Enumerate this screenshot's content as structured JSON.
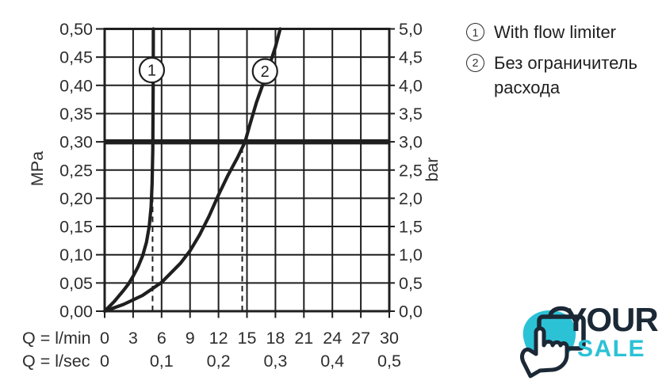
{
  "colors": {
    "ink": "#1f1f1f",
    "text": "#2e2e2e",
    "teal": "#2cc2d6",
    "navy": "#1b2836",
    "background": "#ffffff"
  },
  "legend": {
    "items": [
      {
        "num": "1",
        "text": "With flow limiter"
      },
      {
        "num": "2",
        "text": "Без ограничитель расхода",
        "text_line1": "Без ограничитель",
        "text_line2": "расхода"
      }
    ]
  },
  "logo": {
    "line1": "YOUR",
    "line2": "SALE"
  },
  "chart_data": {
    "type": "line",
    "grid": true,
    "legend_position": "right",
    "x_axis": {
      "row1_label": "Q = l/min",
      "row2_label": "Q = l/sec",
      "xlim_lmin": [
        0,
        30
      ],
      "ticks_lmin": [
        0,
        3,
        6,
        9,
        12,
        15,
        18,
        21,
        24,
        27,
        30
      ],
      "tick_labels_lmin": [
        "0",
        "3",
        "6",
        "9",
        "12",
        "15",
        "18",
        "21",
        "24",
        "27",
        "30"
      ],
      "ticks_lsec": [
        0,
        0.1,
        0.2,
        0.3,
        0.4,
        0.5
      ],
      "tick_labels_lsec": [
        "0",
        "0,1",
        "0,2",
        "0,3",
        "0,4",
        "0,5"
      ],
      "lsec_positions_lmin": [
        0,
        6,
        12,
        18,
        24,
        30
      ]
    },
    "y_axis_left": {
      "unit": "MPa",
      "lim": [
        0,
        0.5
      ],
      "ticks": [
        0.5,
        0.45,
        0.4,
        0.35,
        0.3,
        0.25,
        0.2,
        0.15,
        0.1,
        0.05,
        0.0
      ],
      "tick_labels": [
        "0,50",
        "0,45",
        "0,40",
        "0,35",
        "0,30",
        "0,25",
        "0,20",
        "0,15",
        "0,10",
        "0,05",
        "0,00"
      ]
    },
    "y_axis_right": {
      "unit": "bar",
      "lim": [
        0,
        5
      ],
      "tick_labels": [
        "5,0",
        "4,5",
        "4,0",
        "3,5",
        "3,0",
        "2,5",
        "2,0",
        "1,5",
        "1,0",
        "0,5",
        "0,0"
      ]
    },
    "reference_line": {
      "y_mpa": 0.3,
      "y_bar": 3.0
    },
    "dashed_guides": [
      {
        "x_lmin": 5.05,
        "y_top_mpa": 0.3
      },
      {
        "x_lmin": 14.5,
        "y_top_mpa": 0.3
      }
    ],
    "series": [
      {
        "id": "1",
        "name": "With flow limiter",
        "points_lmin_mpa": [
          [
            0,
            0
          ],
          [
            1,
            0.017
          ],
          [
            2,
            0.037
          ],
          [
            2.5,
            0.048
          ],
          [
            3,
            0.062
          ],
          [
            3.5,
            0.078
          ],
          [
            4,
            0.098
          ],
          [
            4.4,
            0.122
          ],
          [
            4.7,
            0.15
          ],
          [
            4.9,
            0.185
          ],
          [
            5.0,
            0.225
          ],
          [
            5.07,
            0.285
          ],
          [
            5.1,
            0.35
          ],
          [
            5.12,
            0.43
          ],
          [
            5.13,
            0.5
          ]
        ]
      },
      {
        "id": "2",
        "name": "Без ограничитель расхода",
        "points_lmin_mpa": [
          [
            0,
            0
          ],
          [
            2,
            0.012
          ],
          [
            4,
            0.028
          ],
          [
            6,
            0.051
          ],
          [
            8,
            0.085
          ],
          [
            9,
            0.107
          ],
          [
            10,
            0.135
          ],
          [
            11,
            0.168
          ],
          [
            12,
            0.206
          ],
          [
            13,
            0.241
          ],
          [
            14,
            0.272
          ],
          [
            14.8,
            0.3
          ],
          [
            15.3,
            0.33
          ],
          [
            16,
            0.37
          ],
          [
            17,
            0.417
          ],
          [
            18,
            0.468
          ],
          [
            18.5,
            0.5
          ]
        ]
      }
    ],
    "series_markers": [
      {
        "label": "1",
        "x_lmin": 4.97,
        "y_mpa": 0.427
      },
      {
        "label": "2",
        "x_lmin": 16.9,
        "y_mpa": 0.425
      }
    ]
  }
}
